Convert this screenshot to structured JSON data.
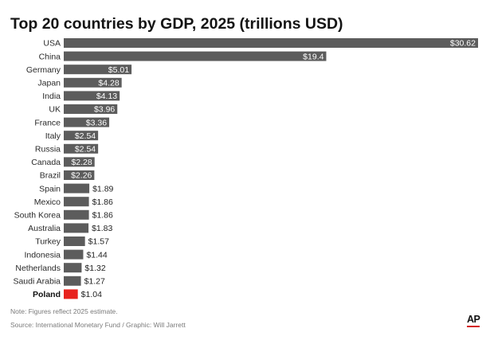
{
  "chart_data": {
    "type": "bar",
    "orientation": "horizontal",
    "title": "Top 20 countries by GDP, 2025 (trillions USD)",
    "categories": [
      "USA",
      "China",
      "Germany",
      "Japan",
      "India",
      "UK",
      "France",
      "Italy",
      "Russia",
      "Canada",
      "Brazil",
      "Spain",
      "Mexico",
      "South Korea",
      "Australia",
      "Turkey",
      "Indonesia",
      "Netherlands",
      "Saudi Arabia",
      "Poland"
    ],
    "values": [
      30.62,
      19.4,
      5.01,
      4.28,
      4.13,
      3.96,
      3.36,
      2.54,
      2.54,
      2.28,
      2.26,
      1.89,
      1.86,
      1.86,
      1.83,
      1.57,
      1.44,
      1.32,
      1.27,
      1.04
    ],
    "value_labels": [
      "$30.62",
      "$19.4",
      "$5.01",
      "$4.28",
      "$4.13",
      "$3.96",
      "$3.36",
      "$2.54",
      "$2.54",
      "$2.28",
      "$2.26",
      "$1.89",
      "$1.86",
      "$1.86",
      "$1.83",
      "$1.57",
      "$1.44",
      "$1.32",
      "$1.27",
      "$1.04"
    ],
    "highlight": "Poland",
    "xlim": [
      0,
      30.62
    ],
    "xlabel": "",
    "ylabel": "",
    "grid": false,
    "colors": {
      "bar": "#5c5c5c",
      "highlight": "#e8231e",
      "label_inside": "#ffffff",
      "label_outside": "#222222"
    }
  },
  "footer": {
    "note": "Note: Figures reflect 2025 estimate.",
    "source": "Source: International Monetary Fund / Graphic: Will Jarrett",
    "logo": "AP"
  }
}
